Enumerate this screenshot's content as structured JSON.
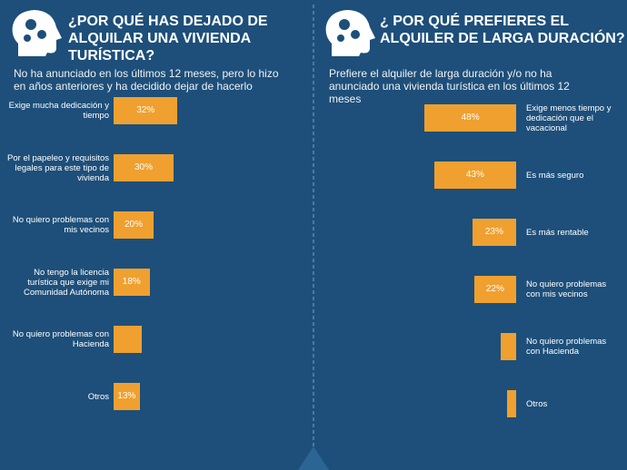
{
  "chart_data": [
    {
      "type": "bar",
      "orientation": "horizontal",
      "title": "¿POR QUÉ HAS DEJADO DE ALQUILAR UNA VIVIENDA TURÍSTICA?",
      "subtitle": "No ha anunciado en los últimos 12 meses, pero lo hizo en años anteriores y ha decidido dejar de hacerlo",
      "categories": [
        "Exige mucha dedicación y tiempo",
        "Por el papeleo y requisitos legales para este tipo de vivienda",
        "No quiero problemas con mis vecinos",
        "No tengo la licencia turística que exige mi Comunidad Autónoma",
        "No quiero problemas con Hacienda",
        "Otros"
      ],
      "values": [
        32,
        30,
        20,
        18,
        14,
        13
      ],
      "value_labels": [
        "32%",
        "30%",
        "20%",
        "18%",
        null,
        "13%"
      ],
      "color": "#f0a02e"
    },
    {
      "type": "bar",
      "orientation": "horizontal",
      "title": "¿ POR QUÉ PREFIERES EL ALQUILER DE LARGA DURACIÓN?",
      "subtitle": "Prefiere el alquiler de larga duración y/o no ha anunciado una vivienda turística en los últimos 12 meses",
      "categories": [
        "Exige menos tiempo y dedicación que el vacacional",
        "Es más seguro",
        "Es más rentable",
        "No quiero problemas con mis vecinos",
        "No quiero problemas con Hacienda",
        "Otros"
      ],
      "values": [
        48,
        43,
        23,
        22,
        8,
        5
      ],
      "value_labels": [
        "48%",
        "43%",
        "23%",
        "22%",
        null,
        null
      ],
      "color": "#f0a02e"
    }
  ]
}
